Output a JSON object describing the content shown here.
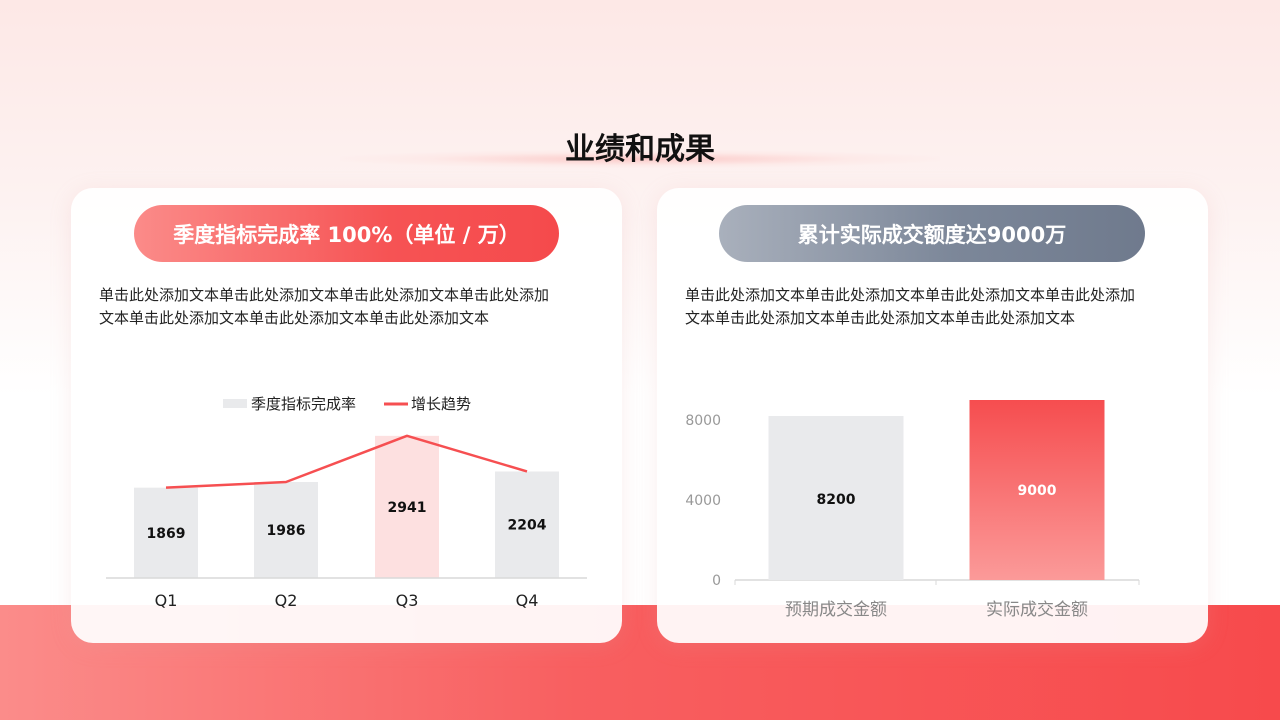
{
  "page": {
    "title": "业绩和成果"
  },
  "left_card": {
    "pill_label": "季度指标完成率 100%（单位 / 万）",
    "text_line1": "单击此处添加文本单击此处添加文本单击此处添加文本单击此处添加",
    "text_line2": "文本单击此处添加文本单击此处添加文本单击此处添加文本"
  },
  "right_card": {
    "pill_label": "累计实际成交额度达9000万",
    "text_line1": "单击此处添加文本单击此处添加文本单击此处添加文本单击此处添加",
    "text_line2": "文本单击此处添加文本单击此处添加文本单击此处添加文本"
  },
  "colors": {
    "accent_red": "#f64f51",
    "bar_gray": "#e9eaec",
    "bar_highlight": "#fde0e0",
    "pill_gray": "#7c8799"
  },
  "chart_data": [
    {
      "type": "bar",
      "categories": [
        "Q1",
        "Q2",
        "Q3",
        "Q4"
      ],
      "series": [
        {
          "name": "季度指标完成率",
          "type": "bar",
          "values": [
            1869,
            1986,
            2941,
            2204
          ]
        },
        {
          "name": "增长趋势",
          "type": "line",
          "values": [
            1869,
            1986,
            2941,
            2204
          ]
        }
      ],
      "data_labels": [
        "1869",
        "1986",
        "2941",
        "2204"
      ],
      "highlight_category": "Q3",
      "legend_position": "top",
      "ylim": [
        0,
        3000
      ],
      "grid": false
    },
    {
      "type": "bar",
      "categories": [
        "预期成交金额",
        "实际成交金额"
      ],
      "values": [
        8200,
        9000
      ],
      "data_labels": [
        "8200",
        "9000"
      ],
      "yticks": [
        "0",
        "4000",
        "8000"
      ],
      "ylim": [
        0,
        9000
      ],
      "grid": false
    }
  ]
}
